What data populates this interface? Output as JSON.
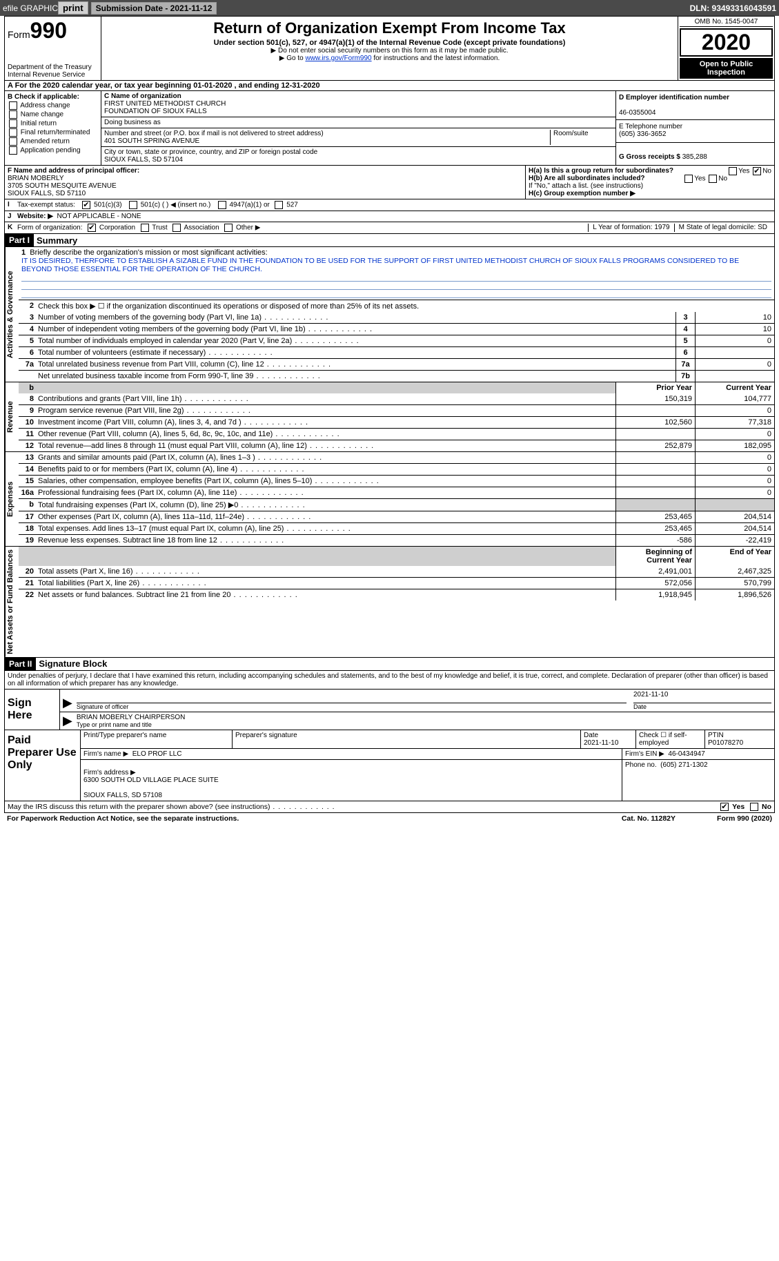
{
  "topbar": {
    "efile_label": "efile GRAPHIC",
    "print_btn": "print",
    "submission_label": "Submission Date - 2021-11-12",
    "dln_label": "DLN: 93493316043591"
  },
  "header": {
    "form_label_small": "Form",
    "form_label_big": "990",
    "dept": "Department of the Treasury\nInternal Revenue Service",
    "title": "Return of Organization Exempt From Income Tax",
    "subtitle": "Under section 501(c), 527, or 4947(a)(1) of the Internal Revenue Code (except private foundations)",
    "note1": "▶ Do not enter social security numbers on this form as it may be made public.",
    "note2_pre": "▶ Go to ",
    "note2_link": "www.irs.gov/Form990",
    "note2_post": " for instructions and the latest information.",
    "omb": "OMB No. 1545-0047",
    "year": "2020",
    "open_public": "Open to Public Inspection"
  },
  "rowA": {
    "text": "A For the 2020 calendar year, or tax year beginning 01-01-2020   , and ending 12-31-2020"
  },
  "blockB": {
    "label": "B Check if applicable:",
    "opts": {
      "addr": "Address change",
      "name": "Name change",
      "initial": "Initial return",
      "final": "Final return/terminated",
      "amended": "Amended return",
      "pending": "Application pending"
    }
  },
  "blockC": {
    "name_label": "C Name of organization",
    "name": "FIRST UNITED METHODIST CHURCH\nFOUNDATION OF SIOUX FALLS",
    "dba_label": "Doing business as",
    "addr_label": "Number and street (or P.O. box if mail is not delivered to street address)",
    "room_label": "Room/suite",
    "addr": "401 SOUTH SPRING AVENUE",
    "city_label": "City or town, state or province, country, and ZIP or foreign postal code",
    "city": "SIOUX FALLS, SD  57104"
  },
  "blockD": {
    "ein_label": "D Employer identification number",
    "ein": "46-0355004",
    "tel_label": "E Telephone number",
    "tel": "(605) 336-3652",
    "gross_label": "G Gross receipts $ ",
    "gross": "385,288"
  },
  "blockF": {
    "label": "F  Name and address of principal officer:",
    "name": "BRIAN MOBERLY",
    "addr1": "3705 SOUTH MESQUITE AVENUE",
    "addr2": "SIOUX FALLS, SD  57110"
  },
  "blockH": {
    "ha": "H(a)  Is this a group return for subordinates?",
    "hb": "H(b)  Are all subordinates included?",
    "hb_note": "If \"No,\" attach a list. (see instructions)",
    "hc": "H(c)  Group exemption number ▶",
    "yes": "Yes",
    "no": "No"
  },
  "rowI": {
    "label": "I",
    "text": "Tax-exempt status:",
    "opt1": "501(c)(3)",
    "opt2": "501(c) (  ) ◀ (insert no.)",
    "opt3": "4947(a)(1) or",
    "opt4": "527"
  },
  "rowJ": {
    "label": "J",
    "text": "Website: ▶",
    "val": "NOT APPLICABLE - NONE"
  },
  "rowK": {
    "label": "K",
    "text": "Form of organization:",
    "corp": "Corporation",
    "trust": "Trust",
    "assoc": "Association",
    "other": "Other ▶"
  },
  "rowLM": {
    "l": "L Year of formation: 1979",
    "m": "M State of legal domicile: SD"
  },
  "part1": {
    "bar": "Part I",
    "title": "Summary",
    "line1_label": "1",
    "line1_text": "Briefly describe the organization's mission or most significant activities:",
    "mission": "IT IS DESIRED, THERFORE TO ESTABLISH A SIZABLE FUND IN THE FOUNDATION TO BE USED FOR THE SUPPORT OF FIRST UNITED METHODIST CHURCH OF SIOUX FALLS PROGRAMS CONSIDERED TO BE BEYOND THOSE ESSENTIAL FOR THE OPERATION OF THE CHURCH.",
    "line2": "Check this box ▶ ☐  if the organization discontinued its operations or disposed of more than 25% of its net assets.",
    "rot_gov": "Activities & Governance",
    "rot_rev": "Revenue",
    "rot_exp": "Expenses",
    "rot_net": "Net Assets or Fund Balances",
    "hdr_prior": "Prior Year",
    "hdr_curr": "Current Year",
    "hdr_begin": "Beginning of Current Year",
    "hdr_end": "End of Year",
    "lines_gov": [
      {
        "n": "3",
        "d": "Number of voting members of the governing body (Part VI, line 1a)",
        "k": "3",
        "v": "10"
      },
      {
        "n": "4",
        "d": "Number of independent voting members of the governing body (Part VI, line 1b)",
        "k": "4",
        "v": "10"
      },
      {
        "n": "5",
        "d": "Total number of individuals employed in calendar year 2020 (Part V, line 2a)",
        "k": "5",
        "v": "0"
      },
      {
        "n": "6",
        "d": "Total number of volunteers (estimate if necessary)",
        "k": "6",
        "v": ""
      },
      {
        "n": "7a",
        "d": "Total unrelated business revenue from Part VIII, column (C), line 12",
        "k": "7a",
        "v": "0"
      },
      {
        "n": "",
        "d": "Net unrelated business taxable income from Form 990-T, line 39",
        "k": "7b",
        "v": ""
      }
    ],
    "lines_rev": [
      {
        "n": "8",
        "d": "Contributions and grants (Part VIII, line 1h)",
        "p": "150,319",
        "c": "104,777"
      },
      {
        "n": "9",
        "d": "Program service revenue (Part VIII, line 2g)",
        "p": "",
        "c": "0"
      },
      {
        "n": "10",
        "d": "Investment income (Part VIII, column (A), lines 3, 4, and 7d )",
        "p": "102,560",
        "c": "77,318"
      },
      {
        "n": "11",
        "d": "Other revenue (Part VIII, column (A), lines 5, 6d, 8c, 9c, 10c, and 11e)",
        "p": "",
        "c": "0"
      },
      {
        "n": "12",
        "d": "Total revenue—add lines 8 through 11 (must equal Part VIII, column (A), line 12)",
        "p": "252,879",
        "c": "182,095"
      }
    ],
    "lines_exp": [
      {
        "n": "13",
        "d": "Grants and similar amounts paid (Part IX, column (A), lines 1–3 )",
        "p": "",
        "c": "0"
      },
      {
        "n": "14",
        "d": "Benefits paid to or for members (Part IX, column (A), line 4)",
        "p": "",
        "c": "0"
      },
      {
        "n": "15",
        "d": "Salaries, other compensation, employee benefits (Part IX, column (A), lines 5–10)",
        "p": "",
        "c": "0"
      },
      {
        "n": "16a",
        "d": "Professional fundraising fees (Part IX, column (A), line 11e)",
        "p": "",
        "c": "0"
      },
      {
        "n": "b",
        "d": "Total fundraising expenses (Part IX, column (D), line 25) ▶0",
        "p": "SHADE",
        "c": "SHADE"
      },
      {
        "n": "17",
        "d": "Other expenses (Part IX, column (A), lines 11a–11d, 11f–24e)",
        "p": "253,465",
        "c": "204,514"
      },
      {
        "n": "18",
        "d": "Total expenses. Add lines 13–17 (must equal Part IX, column (A), line 25)",
        "p": "253,465",
        "c": "204,514"
      },
      {
        "n": "19",
        "d": "Revenue less expenses. Subtract line 18 from line 12",
        "p": "-586",
        "c": "-22,419"
      }
    ],
    "lines_net": [
      {
        "n": "20",
        "d": "Total assets (Part X, line 16)",
        "p": "2,491,001",
        "c": "2,467,325"
      },
      {
        "n": "21",
        "d": "Total liabilities (Part X, line 26)",
        "p": "572,056",
        "c": "570,799"
      },
      {
        "n": "22",
        "d": "Net assets or fund balances. Subtract line 21 from line 20",
        "p": "1,918,945",
        "c": "1,896,526"
      }
    ]
  },
  "part2": {
    "bar": "Part II",
    "title": "Signature Block",
    "penalties": "Under penalties of perjury, I declare that I have examined this return, including accompanying schedules and statements, and to the best of my knowledge and belief, it is true, correct, and complete. Declaration of preparer (other than officer) is based on all information of which preparer has any knowledge.",
    "sign_here": "Sign Here",
    "sig_officer": "Signature of officer",
    "sig_date": "Date",
    "sig_date_val": "2021-11-10",
    "sig_name": "BRIAN MOBERLY CHAIRPERSON",
    "sig_name_label": "Type or print name and title",
    "paid_label": "Paid Preparer Use Only",
    "prep_name_label": "Print/Type preparer's name",
    "prep_sig_label": "Preparer's signature",
    "prep_date_label": "Date",
    "prep_date": "2021-11-10",
    "prep_self_label": "Check ☐ if self-employed",
    "ptin_label": "PTIN",
    "ptin": "P01078270",
    "firm_name_label": "Firm's name    ▶",
    "firm_name": "ELO PROF LLC",
    "firm_ein_label": "Firm's EIN ▶",
    "firm_ein": "46-0434947",
    "firm_addr_label": "Firm's address ▶",
    "firm_addr": "6300 SOUTH OLD VILLAGE PLACE SUITE\n\nSIOUX FALLS, SD  57108",
    "firm_phone_label": "Phone no.",
    "firm_phone": "(605) 271-1302",
    "discuss": "May the IRS discuss this return with the preparer shown above? (see instructions)",
    "yes": "Yes",
    "no": "No"
  },
  "footer": {
    "pra": "For Paperwork Reduction Act Notice, see the separate instructions.",
    "cat": "Cat. No. 11282Y",
    "formref": "Form 990 (2020)"
  }
}
